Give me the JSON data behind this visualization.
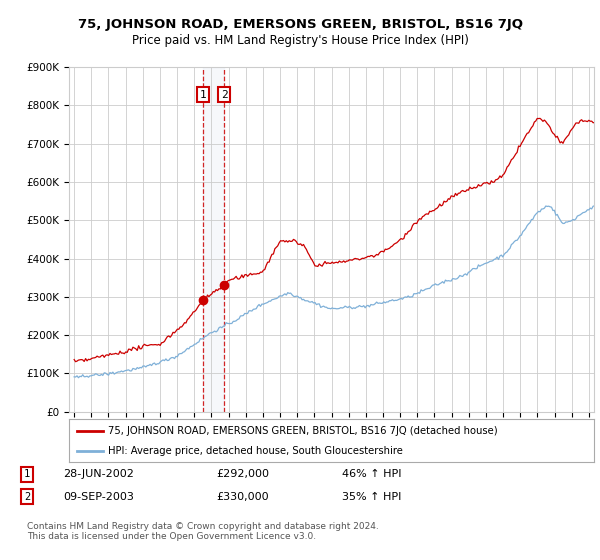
{
  "title": "75, JOHNSON ROAD, EMERSONS GREEN, BRISTOL, BS16 7JQ",
  "subtitle": "Price paid vs. HM Land Registry's House Price Index (HPI)",
  "red_label": "75, JOHNSON ROAD, EMERSONS GREEN, BRISTOL, BS16 7JQ (detached house)",
  "blue_label": "HPI: Average price, detached house, South Gloucestershire",
  "footer": "Contains HM Land Registry data © Crown copyright and database right 2024.\nThis data is licensed under the Open Government Licence v3.0.",
  "transaction1_label": "28-JUN-2002",
  "transaction1_price": "£292,000",
  "transaction1_hpi": "46% ↑ HPI",
  "transaction2_label": "09-SEP-2003",
  "transaction2_price": "£330,000",
  "transaction2_hpi": "35% ↑ HPI",
  "red_color": "#cc0000",
  "blue_color": "#7fb0d8",
  "background_color": "#ffffff",
  "grid_color": "#cccccc",
  "t1_x": 2002.5,
  "t2_x": 2003.75,
  "t1_y": 292000,
  "t2_y": 330000,
  "ylim": [
    0,
    900000
  ],
  "xlim": [
    1994.7,
    2025.3
  ]
}
